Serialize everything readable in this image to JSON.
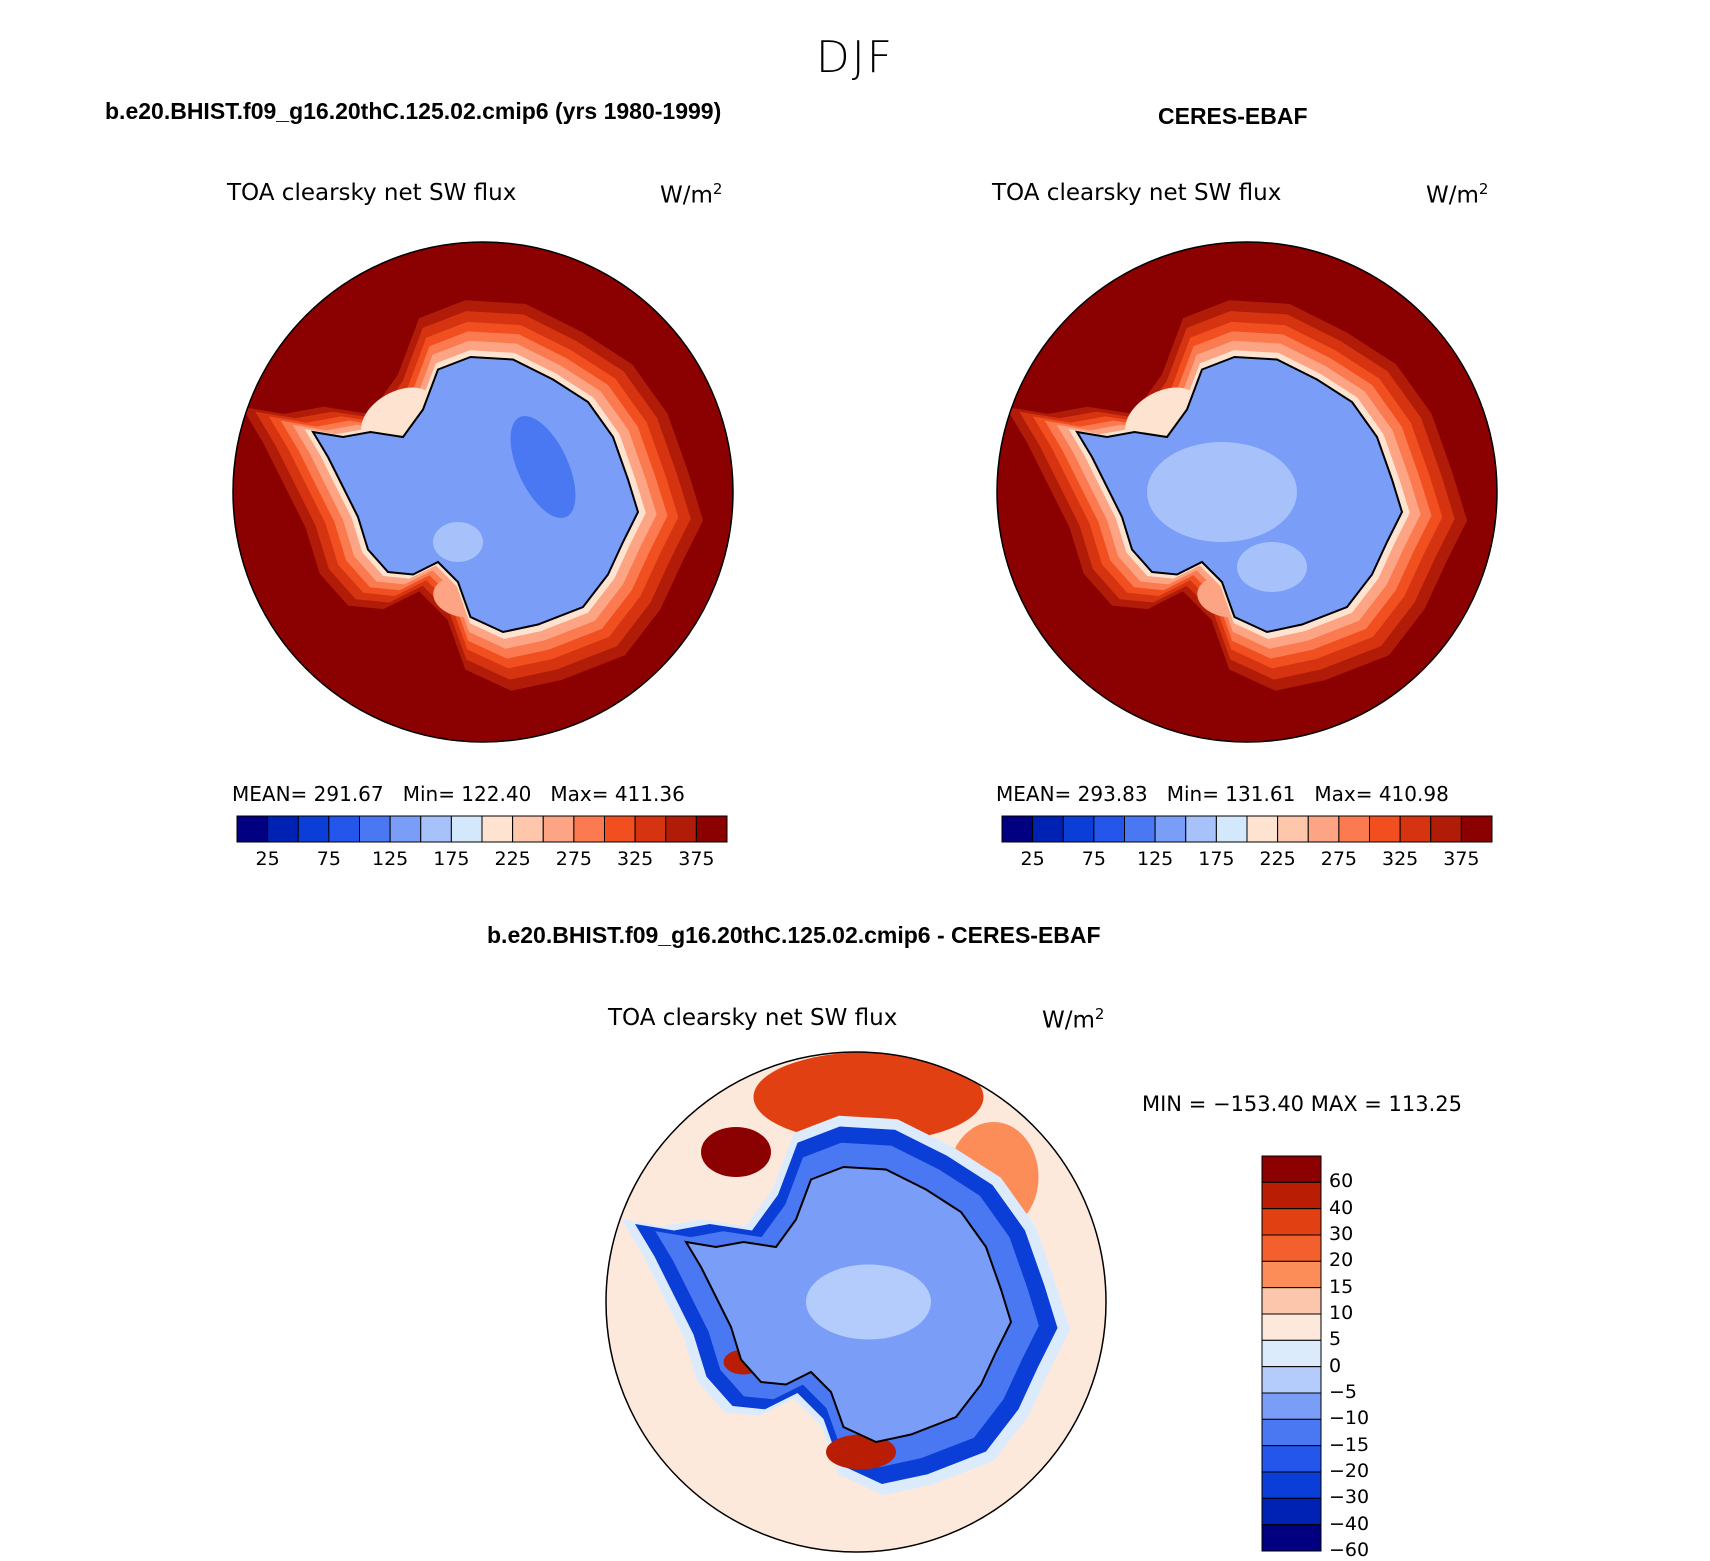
{
  "season": "DJF",
  "colors": {
    "seq": [
      "#000080",
      "#0022b4",
      "#0a3ed6",
      "#2456ec",
      "#4a78f2",
      "#7a9ef8",
      "#a7c2fb",
      "#d4e8fb",
      "#fee3d0",
      "#fec6ab",
      "#fca484",
      "#fb7a50",
      "#f24f20",
      "#d63410",
      "#b01c08",
      "#8b0000"
    ],
    "diff": [
      "#000080",
      "#0022b4",
      "#0a3ed6",
      "#2456ec",
      "#4a78f2",
      "#7a9ef8",
      "#b4ccfb",
      "#dcebfb",
      "#fde8dc",
      "#fcc6ac",
      "#fc8d59",
      "#f4602d",
      "#e04012",
      "#b91e05",
      "#8b0000"
    ]
  },
  "panels": [
    {
      "title": "b.e20.BHIST.f09_g16.20thC.125.02.cmip6 (yrs 1980-1999)",
      "variable": "TOA clearsky net SW flux",
      "units": "W/m",
      "units_exp": "2",
      "stats": "MEAN= 291.67   Min= 122.40   Max= 411.36",
      "ticks": [
        "25",
        "75",
        "125",
        "175",
        "225",
        "275",
        "325",
        "375"
      ]
    },
    {
      "title": "CERES-EBAF",
      "variable": "TOA clearsky net SW flux",
      "units": "W/m",
      "units_exp": "2",
      "stats": "MEAN= 293.83   Min= 131.61   Max= 410.98",
      "ticks": [
        "25",
        "75",
        "125",
        "175",
        "225",
        "275",
        "325",
        "375"
      ]
    },
    {
      "title": "b.e20.BHIST.f09_g16.20thC.125.02.cmip6 - CERES-EBAF",
      "variable": "TOA clearsky net SW flux",
      "units": "W/m",
      "units_exp": "2",
      "stats": "MIN = −153.40 MAX = 113.25",
      "ticks": [
        "60",
        "40",
        "30",
        "20",
        "15",
        "10",
        "5",
        "0",
        "−5",
        "−10",
        "−15",
        "−20",
        "−30",
        "−40",
        "−60"
      ]
    }
  ]
}
